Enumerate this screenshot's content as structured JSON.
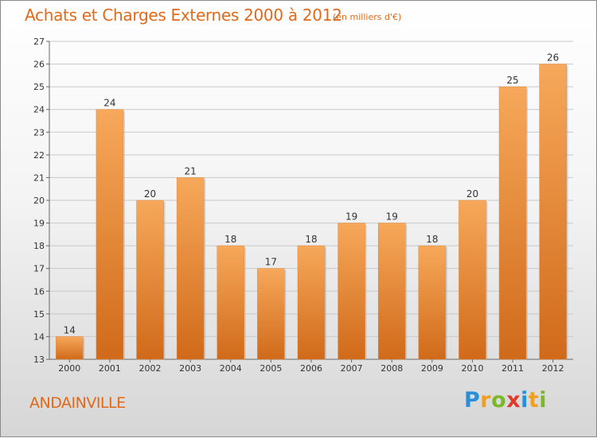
{
  "header": {
    "title": "Achats et Charges Externes 2000 à 2012",
    "subtitle": "(en milliers d'€)"
  },
  "footer": {
    "commune": "ANDAINVILLE",
    "logo_text": "Proxiti",
    "logo_letters": [
      {
        "ch": "P",
        "color": "#2a8fd8"
      },
      {
        "ch": "r",
        "color": "#f0a020"
      },
      {
        "ch": "o",
        "color": "#7ab82a"
      },
      {
        "ch": "x",
        "color": "#e03a2a"
      },
      {
        "ch": "i",
        "color": "#2a8fd8"
      },
      {
        "ch": "t",
        "color": "#f0a020"
      },
      {
        "ch": "i",
        "color": "#7ab82a"
      }
    ]
  },
  "colors": {
    "accent": "#e06a1a",
    "bar_light": "#f7a85a",
    "bar_dark": "#d06a1a",
    "grid": "#c8c8c8"
  },
  "chart_data": {
    "type": "bar",
    "title": "Achats et Charges Externes 2000 à 2012",
    "subtitle": "(en milliers d'€)",
    "xlabel": "",
    "ylabel": "",
    "categories": [
      "2000",
      "2001",
      "2002",
      "2003",
      "2004",
      "2005",
      "2006",
      "2007",
      "2008",
      "2009",
      "2010",
      "2011",
      "2012"
    ],
    "values": [
      14,
      24,
      20,
      21,
      18,
      17,
      18,
      19,
      19,
      18,
      20,
      25,
      26
    ],
    "ylim": [
      13,
      27
    ],
    "yticks": [
      13,
      14,
      15,
      16,
      17,
      18,
      19,
      20,
      21,
      22,
      23,
      24,
      25,
      26,
      27
    ],
    "grid": true,
    "legend": "none"
  }
}
